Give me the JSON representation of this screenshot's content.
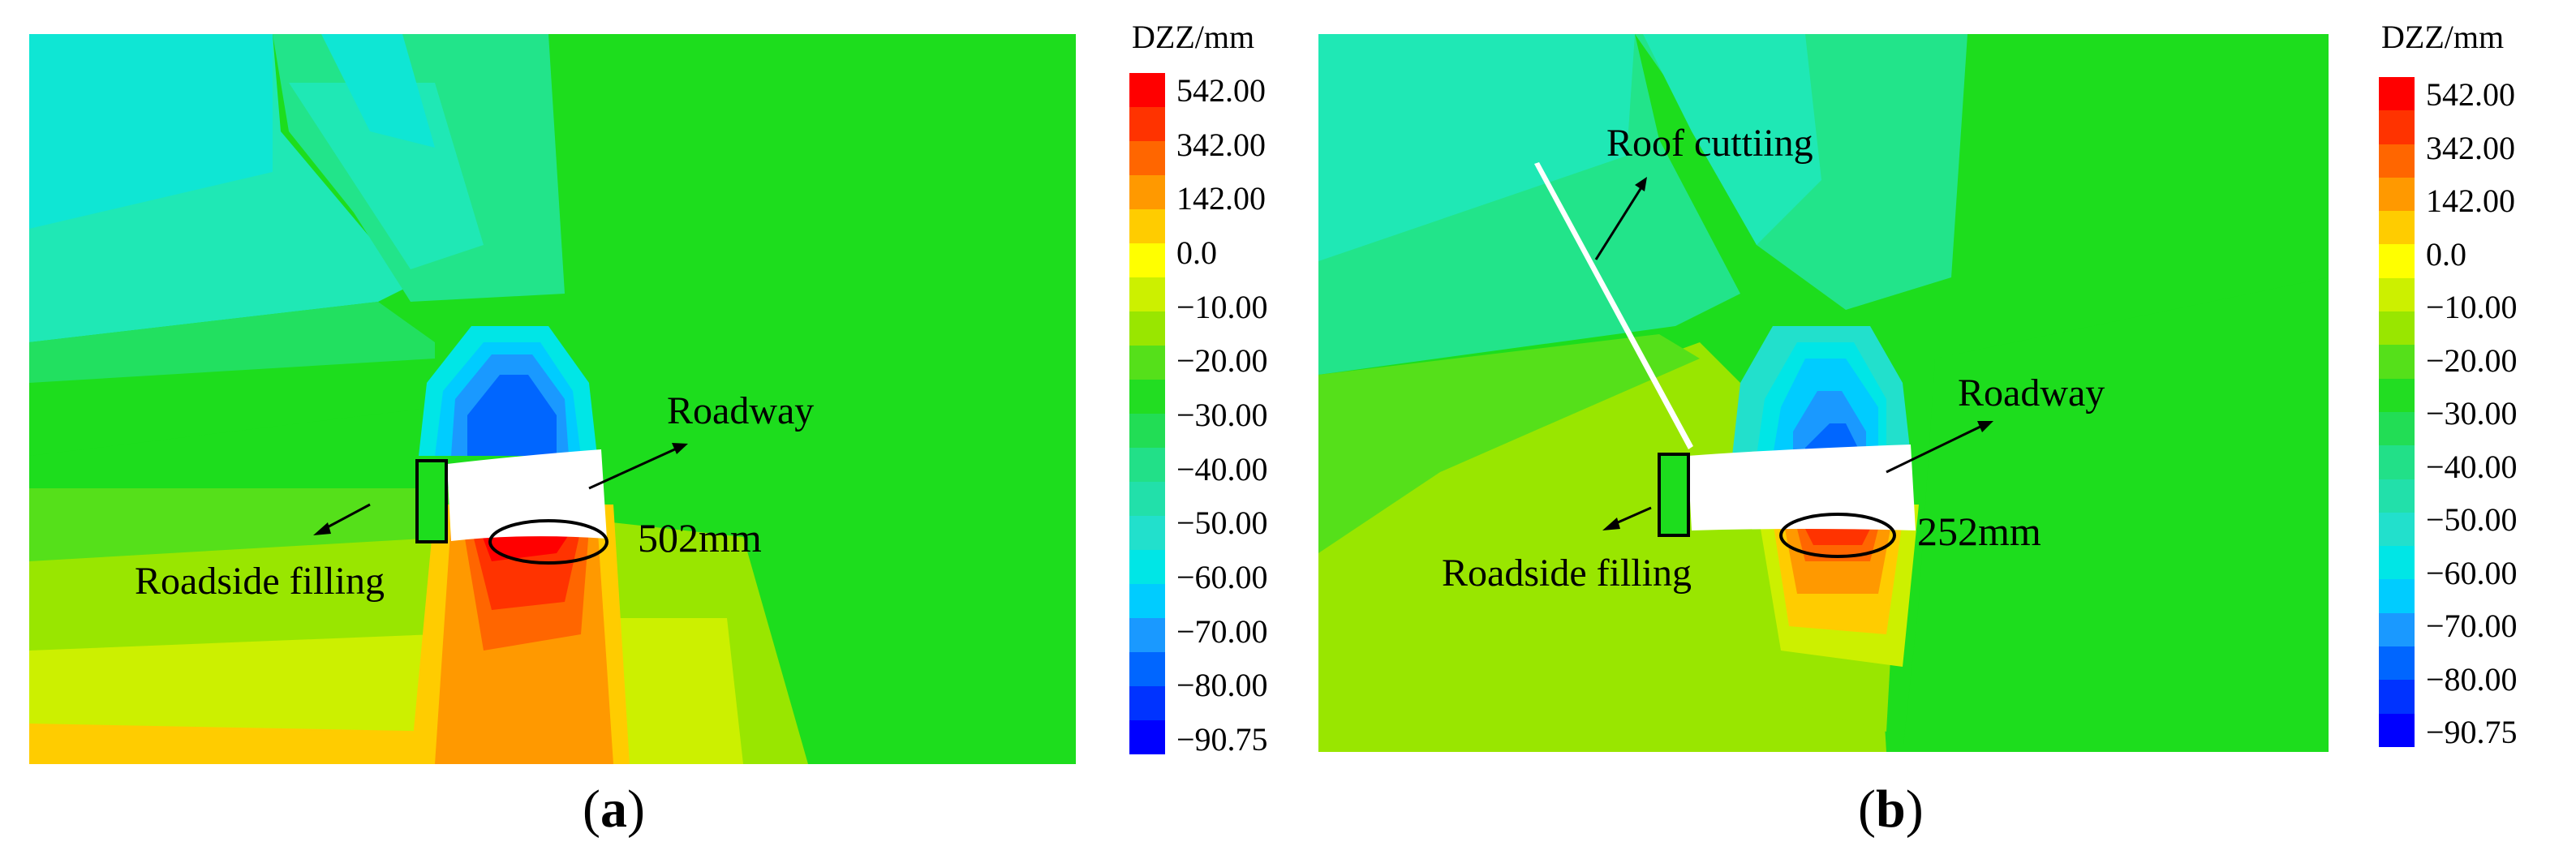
{
  "panel_a": {
    "caption": {
      "open": "(",
      "letter": "a",
      "close": ")"
    },
    "roadway_label": "Roadway",
    "filling_label": "Roadside filling",
    "deform_label": "502mm"
  },
  "panel_b": {
    "caption": {
      "open": "(",
      "letter": "b",
      "close": ")"
    },
    "roadway_label": "Roadway",
    "filling_label": "Roadside filling",
    "deform_label": "252mm",
    "cut_label": "Roof cuttiing"
  },
  "legend": {
    "title": "DZZ/mm",
    "ticks": [
      "542.00",
      "342.00",
      "142.00",
      "0.0",
      "−10.00",
      "−20.00",
      "−30.00",
      "−40.00",
      "−50.00",
      "−60.00",
      "−70.00",
      "−80.00",
      "−90.75"
    ],
    "colors": [
      "#ff0000",
      "#ff3300",
      "#ff6600",
      "#ff9900",
      "#ffcc00",
      "#ffff00",
      "#ccf000",
      "#99e600",
      "#55e01a",
      "#22dd22",
      "#22dd55",
      "#22e088",
      "#22e0aa",
      "#22e0cc",
      "#00e6e6",
      "#00ccff",
      "#1a99ff",
      "#0066ff",
      "#0033ff",
      "#0000ff"
    ]
  }
}
